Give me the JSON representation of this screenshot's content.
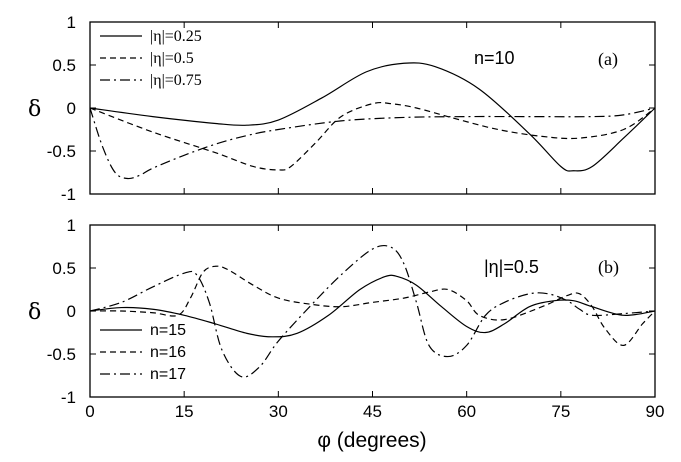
{
  "chart_data": [
    {
      "id": "a",
      "type": "line",
      "panel_label": "(a)",
      "annotation": "n=10",
      "ylabel": "δ",
      "xlim": [
        0,
        90
      ],
      "ylim": [
        -1,
        1
      ],
      "x_ticks": [
        0,
        15,
        30,
        45,
        60,
        75,
        90
      ],
      "y_tick_labels": [
        "1",
        "0.5",
        "0",
        "-0.5",
        "-1"
      ],
      "y_ticks": [
        1,
        0.5,
        0,
        -0.5,
        -1
      ],
      "legend_position": "top-left",
      "series": [
        {
          "name": "|η|=0.25",
          "dash": "solid",
          "x": [
            0,
            10,
            20,
            25,
            30,
            37,
            44,
            50,
            55,
            62,
            70,
            75,
            77,
            80,
            85,
            90
          ],
          "y": [
            0,
            -0.1,
            -0.18,
            -0.2,
            -0.14,
            0.12,
            0.42,
            0.52,
            0.48,
            0.22,
            -0.3,
            -0.68,
            -0.73,
            -0.68,
            -0.35,
            0
          ]
        },
        {
          "name": "|η|=0.5",
          "dash": "dashed",
          "x": [
            0,
            10,
            20,
            26,
            30,
            32,
            36,
            40,
            45,
            48,
            52,
            58,
            65,
            72,
            78,
            85,
            90
          ],
          "y": [
            0,
            -0.28,
            -0.52,
            -0.68,
            -0.72,
            -0.68,
            -0.4,
            -0.1,
            0.05,
            0.05,
            0.0,
            -0.12,
            -0.25,
            -0.33,
            -0.35,
            -0.25,
            0
          ]
        },
        {
          "name": "|η|=0.75",
          "dash": "dashdot",
          "x": [
            0,
            2,
            4,
            6,
            8,
            10,
            15,
            20,
            25,
            30,
            40,
            50,
            60,
            70,
            80,
            85,
            90
          ],
          "y": [
            0,
            -0.45,
            -0.75,
            -0.82,
            -0.78,
            -0.7,
            -0.55,
            -0.42,
            -0.32,
            -0.25,
            -0.15,
            -0.11,
            -0.1,
            -0.1,
            -0.1,
            -0.08,
            0
          ]
        }
      ]
    },
    {
      "id": "b",
      "type": "line",
      "panel_label": "(b)",
      "annotation": "|η|=0.5",
      "ylabel": "δ",
      "xlabel": "φ (degrees)",
      "xlim": [
        0,
        90
      ],
      "ylim": [
        -1,
        1
      ],
      "x_ticks": [
        0,
        15,
        30,
        45,
        60,
        75,
        90
      ],
      "x_tick_labels": [
        "0",
        "15",
        "30",
        "45",
        "60",
        "75",
        "90"
      ],
      "y_ticks": [
        1,
        0.5,
        0,
        -0.5,
        -1
      ],
      "y_tick_labels": [
        "1",
        "0.5",
        "0",
        "-0.5",
        "-1"
      ],
      "legend_position": "bottom-left",
      "series": [
        {
          "name": "n=15",
          "dash": "solid",
          "x": [
            0,
            5,
            10,
            15,
            20,
            25,
            29,
            33,
            38,
            43,
            47,
            49,
            52,
            56,
            60,
            63,
            66,
            70,
            74,
            77,
            80,
            85,
            90
          ],
          "y": [
            0,
            0.04,
            0.02,
            -0.05,
            -0.15,
            -0.26,
            -0.3,
            -0.26,
            -0.05,
            0.25,
            0.4,
            0.4,
            0.3,
            0.05,
            -0.18,
            -0.25,
            -0.15,
            0.05,
            0.12,
            0.12,
            0.05,
            -0.05,
            0
          ]
        },
        {
          "name": "n=16",
          "dash": "dashed",
          "x": [
            0,
            5,
            10,
            14,
            16,
            18,
            20,
            22,
            26,
            30,
            35,
            40,
            45,
            50,
            54,
            57,
            60,
            62,
            66,
            72,
            76,
            78,
            80,
            82,
            85,
            88,
            90
          ],
          "y": [
            0,
            0.0,
            -0.02,
            -0.05,
            0.15,
            0.45,
            0.52,
            0.48,
            0.3,
            0.15,
            0.08,
            0.05,
            0.1,
            0.15,
            0.22,
            0.25,
            0.12,
            -0.05,
            -0.1,
            0.05,
            0.18,
            0.2,
            0.05,
            -0.2,
            -0.4,
            -0.15,
            0
          ]
        },
        {
          "name": "n=17",
          "dash": "dashdot",
          "x": [
            0,
            5,
            10,
            15,
            17,
            19,
            21,
            24,
            27,
            30,
            35,
            40,
            45,
            48,
            50,
            52,
            54,
            57,
            60,
            63,
            66,
            70,
            73,
            76,
            78,
            80,
            85,
            90
          ],
          "y": [
            0,
            0.1,
            0.28,
            0.44,
            0.42,
            0.1,
            -0.45,
            -0.76,
            -0.65,
            -0.35,
            0.05,
            0.42,
            0.72,
            0.74,
            0.55,
            0.1,
            -0.4,
            -0.53,
            -0.4,
            -0.05,
            0.1,
            0.2,
            0.2,
            0.12,
            0.02,
            -0.05,
            -0.03,
            0
          ]
        }
      ]
    }
  ]
}
